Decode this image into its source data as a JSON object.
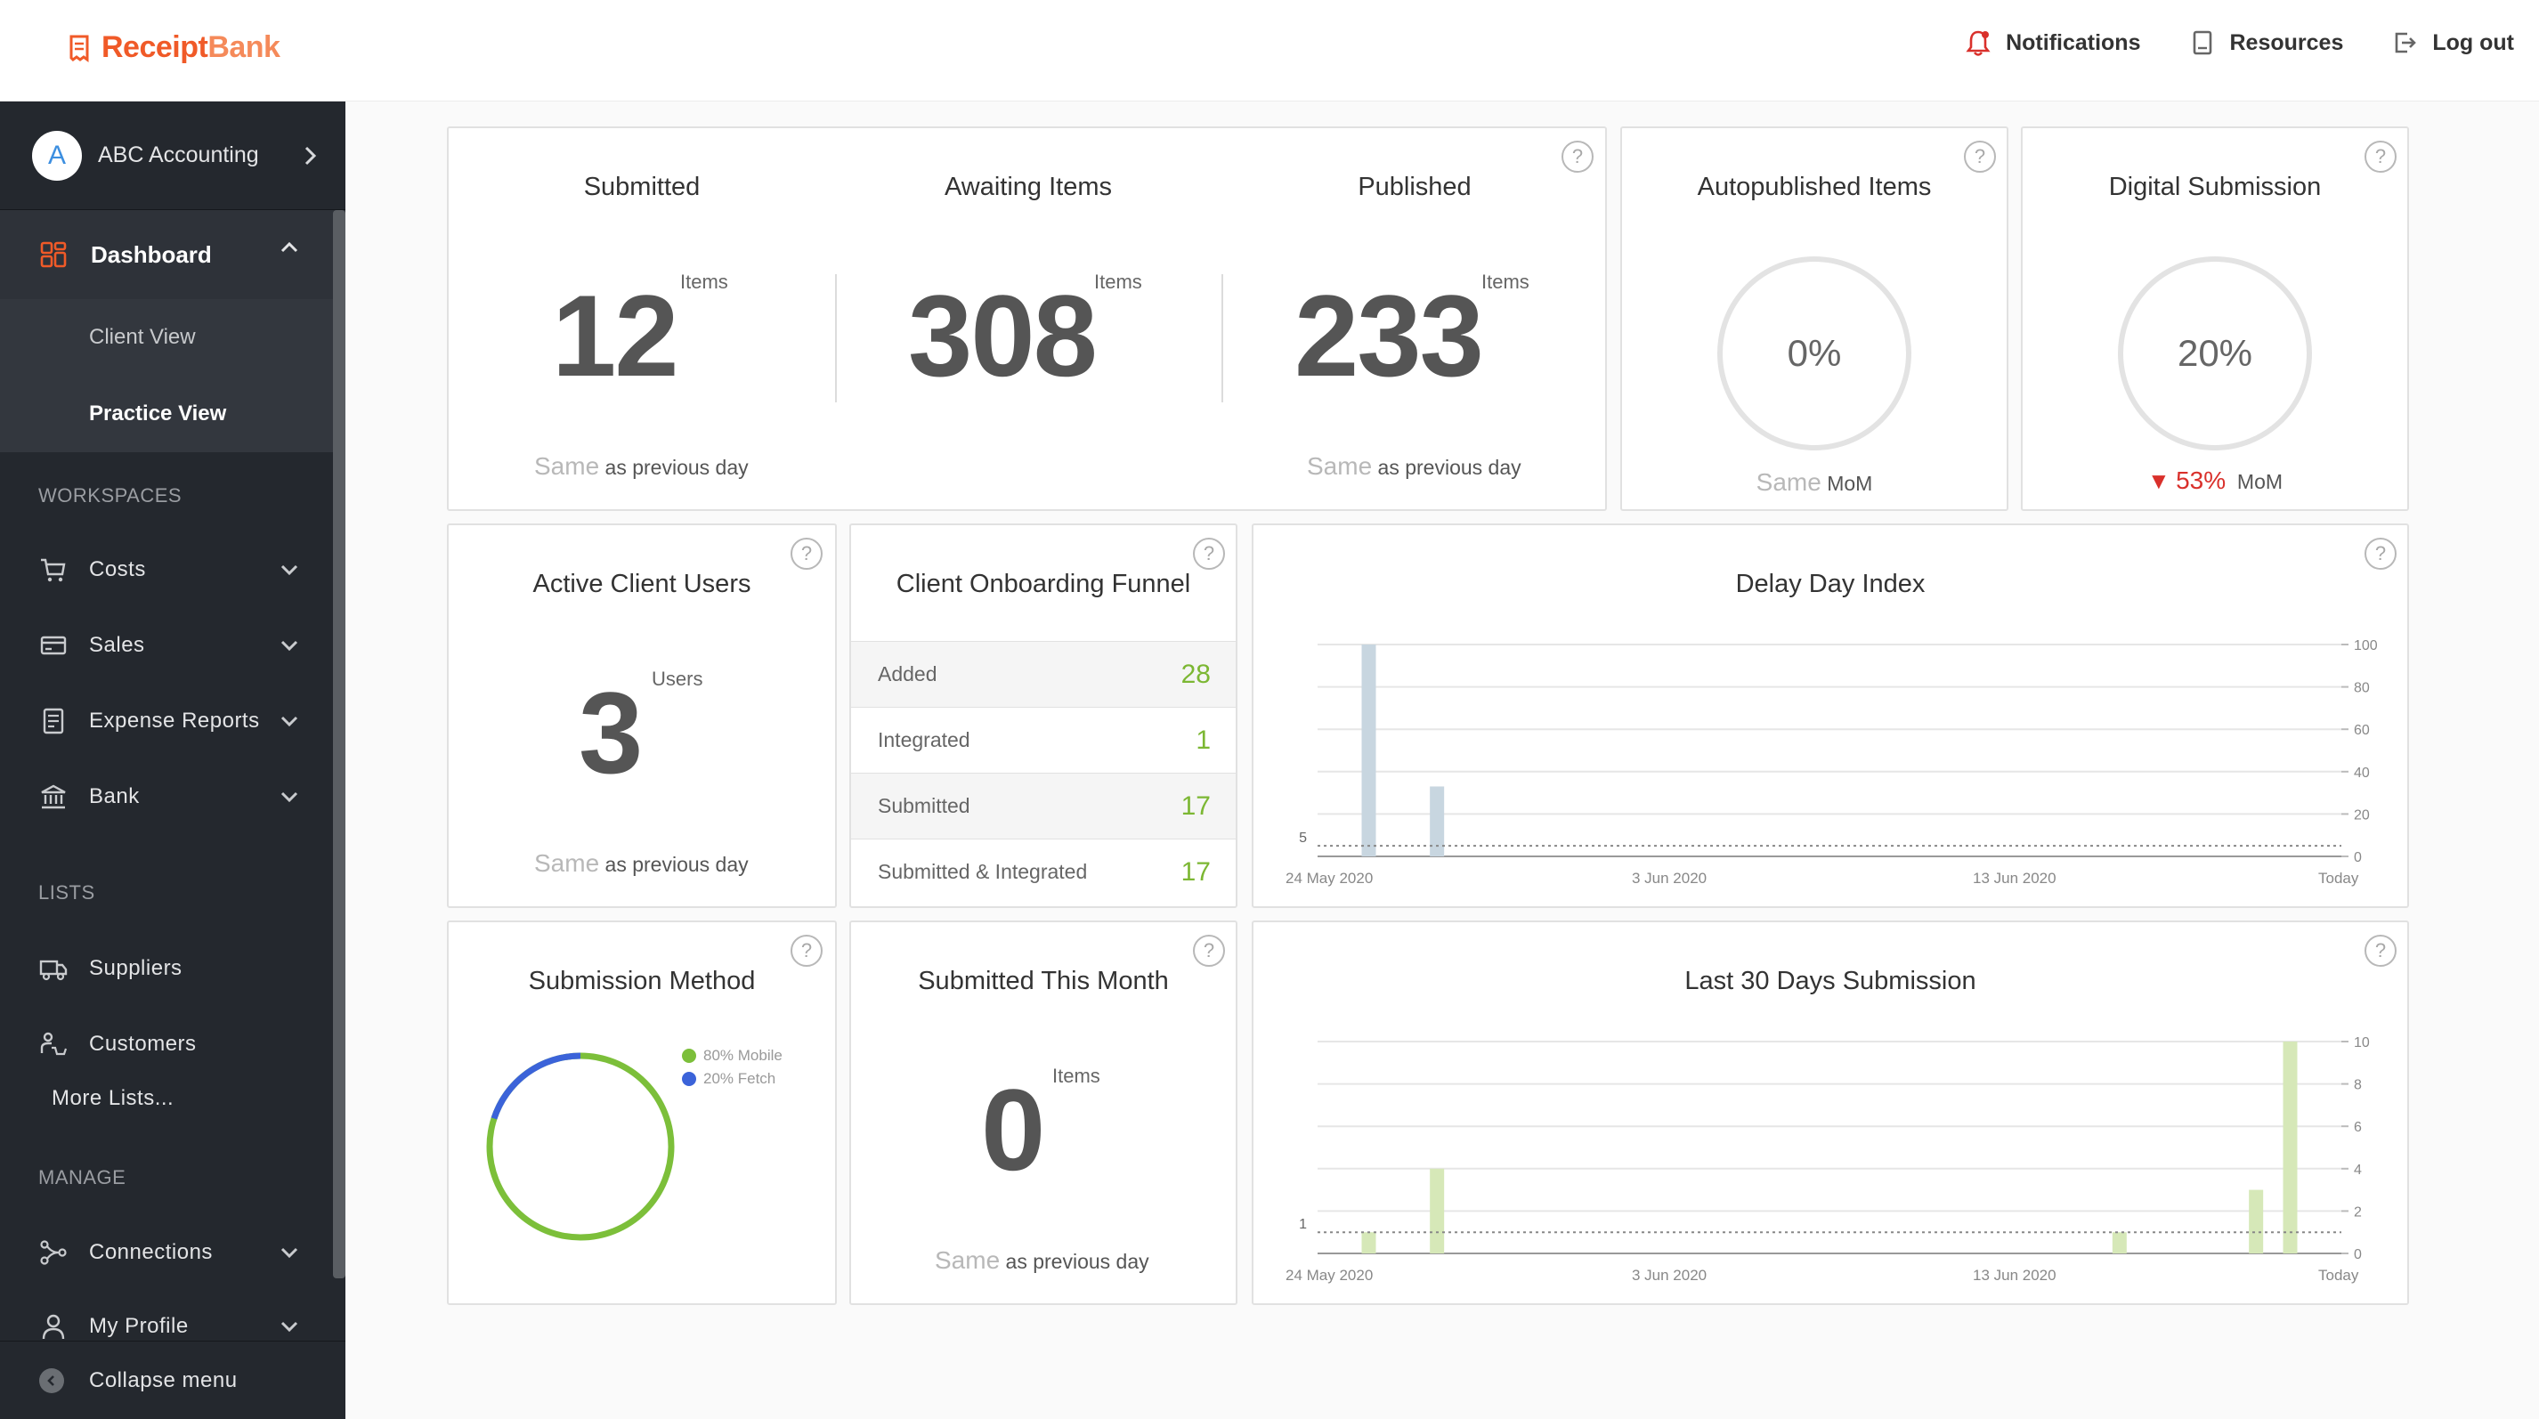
{
  "brand": {
    "name_part1": "Receipt",
    "name_part2": "Bank"
  },
  "topnav": {
    "notifications": "Notifications",
    "resources": "Resources",
    "logout": "Log out"
  },
  "sidebar": {
    "account": {
      "initial": "A",
      "name": "ABC Accounting"
    },
    "dashboard": "Dashboard",
    "client_view": "Client View",
    "practice_view": "Practice View",
    "workspaces_header": "WORKSPACES",
    "costs": "Costs",
    "sales": "Sales",
    "expense_reports": "Expense Reports",
    "bank": "Bank",
    "lists_header": "LISTS",
    "suppliers": "Suppliers",
    "customers": "Customers",
    "more_lists": "More Lists...",
    "manage_header": "MANAGE",
    "connections": "Connections",
    "my_profile": "My Profile",
    "collapse": "Collapse menu"
  },
  "cards": {
    "help": "?",
    "submitted": {
      "title": "Submitted",
      "value": "12",
      "unit": "Items",
      "same": "Same",
      "cmp": "as previous day"
    },
    "awaiting": {
      "title": "Awaiting Items",
      "value": "308",
      "unit": "Items"
    },
    "published": {
      "title": "Published",
      "value": "233",
      "unit": "Items",
      "same": "Same",
      "cmp": "as previous day"
    },
    "autopublished": {
      "title": "Autopublished Items",
      "value": "0%",
      "same": "Same",
      "cmp": "MoM"
    },
    "digital": {
      "title": "Digital Submission",
      "value": "20%",
      "arrow": "▼",
      "change": "53%",
      "cmp": "MoM"
    },
    "active_users": {
      "title": "Active Client Users",
      "value": "3",
      "unit": "Users",
      "same": "Same",
      "cmp": "as previous day"
    },
    "funnel": {
      "title": "Client Onboarding Funnel",
      "rows": [
        {
          "label": "Added",
          "value": "28"
        },
        {
          "label": "Integrated",
          "value": "1"
        },
        {
          "label": "Submitted",
          "value": "17"
        },
        {
          "label": "Submitted & Integrated",
          "value": "17"
        }
      ]
    },
    "submission_method": {
      "title": "Submission Method",
      "legend_mobile": "80% Mobile",
      "legend_fetch": "20% Fetch",
      "mobile_pct": 80,
      "fetch_pct": 20,
      "color_mobile": "#7cbf3a",
      "color_fetch": "#3b63d9"
    },
    "this_month": {
      "title": "Submitted This Month",
      "value": "0",
      "unit": "Items",
      "same": "Same",
      "cmp": "as previous day"
    }
  },
  "chart_data": [
    {
      "type": "bar",
      "title": "Delay Day Index",
      "x_tick_labels": [
        "24 May 2020",
        "3 Jun 2020",
        "13 Jun 2020",
        "Today"
      ],
      "y_ticks": [
        0,
        20,
        40,
        60,
        80,
        100
      ],
      "ylim": [
        0,
        100
      ],
      "reference_line": {
        "value": 5,
        "label": "5"
      },
      "num_days": 30,
      "bars": [
        {
          "day": 2,
          "value": 100
        },
        {
          "day": 4,
          "value": 33
        }
      ],
      "bar_color": "#c8d6e0"
    },
    {
      "type": "bar",
      "title": "Last 30 Days Submission",
      "x_tick_labels": [
        "24 May 2020",
        "3 Jun 2020",
        "13 Jun 2020",
        "Today"
      ],
      "y_ticks": [
        0,
        2,
        4,
        6,
        8,
        10
      ],
      "ylim": [
        0,
        10
      ],
      "reference_line": {
        "value": 1,
        "label": "1"
      },
      "num_days": 30,
      "bars": [
        {
          "day": 2,
          "value": 1
        },
        {
          "day": 4,
          "value": 4
        },
        {
          "day": 24,
          "value": 1
        },
        {
          "day": 28,
          "value": 3
        },
        {
          "day": 29,
          "value": 10
        }
      ],
      "bar_color": "#d6e8b8"
    }
  ]
}
